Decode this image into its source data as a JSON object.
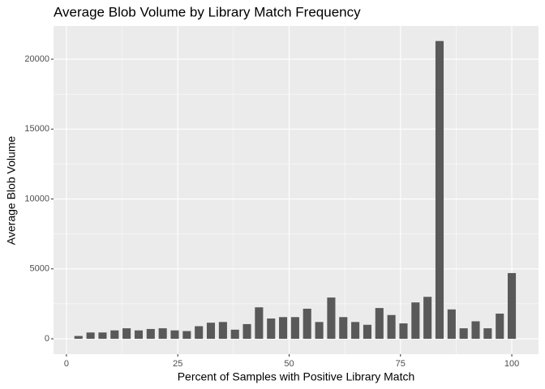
{
  "chart_data": {
    "type": "bar",
    "title": "Average Blob Volume by Library Match Frequency",
    "x_label": "Percent of Samples with Positive Library Match",
    "y_label": "Average Blob Volume",
    "x": [
      2.7,
      5.41,
      8.11,
      10.81,
      13.51,
      16.22,
      18.92,
      21.62,
      24.32,
      27.03,
      29.73,
      32.43,
      35.14,
      37.84,
      40.54,
      43.24,
      45.95,
      48.65,
      51.35,
      54.05,
      56.76,
      59.46,
      62.16,
      64.86,
      67.57,
      70.27,
      72.97,
      75.68,
      78.38,
      81.08,
      83.78,
      86.49,
      89.19,
      91.89,
      94.59,
      97.3,
      100
    ],
    "values": [
      200,
      450,
      450,
      600,
      750,
      600,
      700,
      750,
      600,
      550,
      900,
      1150,
      1200,
      650,
      1050,
      2250,
      1450,
      1550,
      1550,
      2150,
      1200,
      2950,
      1550,
      1200,
      1000,
      2200,
      1700,
      1100,
      2600,
      3000,
      21300,
      2100,
      750,
      1250,
      750,
      1800,
      4700
    ],
    "color": "#595959",
    "xlim": [
      -2.9,
      106
    ],
    "ylim": [
      -1100,
      22380
    ],
    "xticks": [
      0,
      25,
      50,
      75,
      100
    ],
    "yticks": [
      0,
      5000,
      10000,
      15000,
      20000
    ],
    "grid": true
  }
}
